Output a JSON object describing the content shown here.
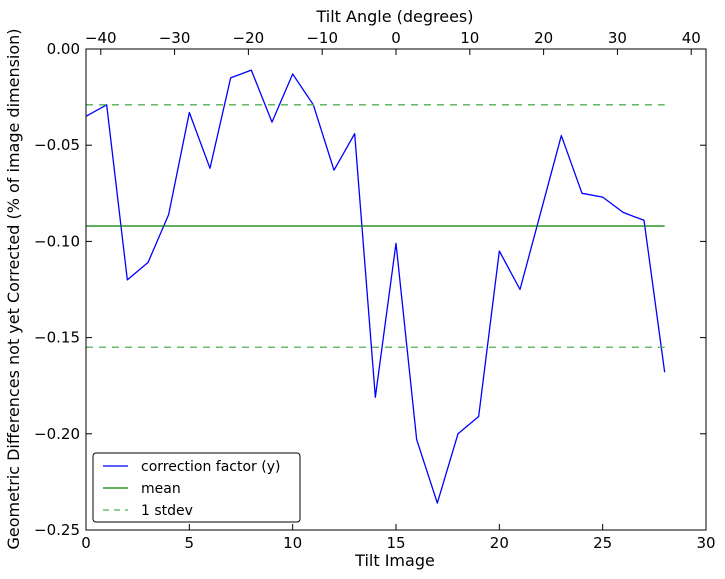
{
  "chart_data": {
    "type": "line",
    "title": "",
    "xlabel": "Tilt Image",
    "ylabel": "Geometric Differences not yet Corrected (% of image dimension)",
    "top_xlabel": "Tilt Angle (degrees)",
    "xlim": [
      0,
      30
    ],
    "ylim": [
      -0.25,
      0.0
    ],
    "top_xlim": [
      -42,
      42
    ],
    "x_ticks": [
      "0",
      "5",
      "10",
      "15",
      "20",
      "25",
      "30"
    ],
    "y_ticks": [
      "0.00",
      "−0.05",
      "−0.10",
      "−0.15",
      "−0.20",
      "−0.25"
    ],
    "top_ticks": [
      "−40",
      "−30",
      "−20",
      "−10",
      "0",
      "10",
      "20",
      "30",
      "40"
    ],
    "grid": false,
    "legend_position": "lower-left",
    "series": [
      {
        "name": "correction factor (y)",
        "color": "#0000ff",
        "style": "solid",
        "x": [
          0,
          1,
          2,
          3,
          4,
          5,
          6,
          7,
          8,
          9,
          10,
          11,
          12,
          13,
          14,
          15,
          16,
          17,
          18,
          19,
          20,
          21,
          22,
          23,
          24,
          25,
          26,
          27,
          28
        ],
        "values": [
          -0.035,
          -0.029,
          -0.12,
          -0.111,
          -0.086,
          -0.033,
          -0.062,
          -0.015,
          -0.011,
          -0.038,
          -0.013,
          -0.029,
          -0.063,
          -0.044,
          -0.181,
          -0.101,
          -0.203,
          -0.236,
          -0.2,
          -0.191,
          -0.105,
          -0.125,
          -0.085,
          -0.045,
          -0.075,
          -0.077,
          -0.085,
          -0.089,
          -0.168
        ]
      },
      {
        "name": "mean",
        "color": "#008000",
        "style": "solid",
        "x": [
          0,
          28
        ],
        "values": [
          -0.092,
          -0.092
        ]
      },
      {
        "name": "1 stdev",
        "color": "#50b050",
        "style": "dashed",
        "x": [
          0,
          28
        ],
        "values": [
          -0.029,
          -0.029
        ]
      },
      {
        "name": "",
        "color": "#50b050",
        "style": "dashed",
        "x": [
          0,
          28
        ],
        "values": [
          -0.155,
          -0.155
        ]
      }
    ],
    "legend": [
      "correction factor (y)",
      "mean",
      "1 stdev"
    ]
  }
}
